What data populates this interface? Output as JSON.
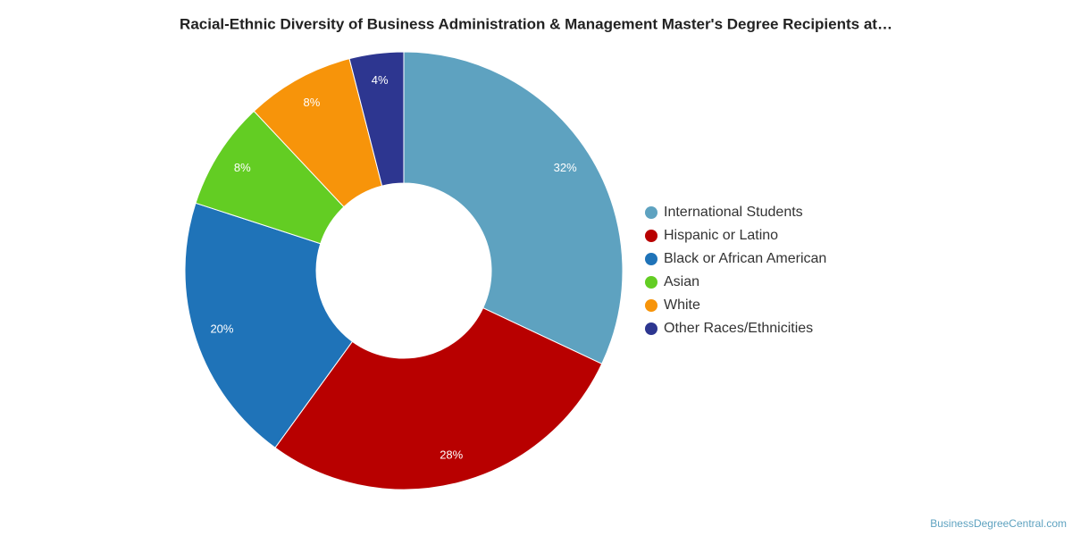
{
  "chart_data": {
    "type": "pie",
    "title": "Racial-Ethnic Diversity of Business Administration & Management Master's Degree Recipients at…",
    "categories": [
      "International Students",
      "Hispanic or Latino",
      "Black or African American",
      "Asian",
      "White",
      "Other Races/Ethnicities"
    ],
    "values": [
      32,
      28,
      20,
      8,
      8,
      4
    ],
    "value_labels": [
      "32%",
      "28%",
      "20%",
      "8%",
      "8%",
      "4%"
    ],
    "colors": [
      "#5ea2c0",
      "#b80000",
      "#1f73b8",
      "#63cd23",
      "#f7940a",
      "#2d3690"
    ],
    "legend": "right",
    "source": "BusinessDegreeCentral.com"
  }
}
